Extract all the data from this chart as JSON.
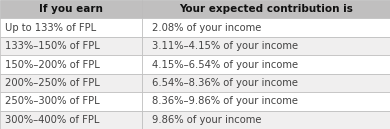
{
  "header": [
    "If you earn",
    "Your expected contribution is"
  ],
  "rows": [
    [
      "Up to 133% of FPL",
      "2.08% of your income"
    ],
    [
      "133%–150% of FPL",
      "3.11%–4.15% of your income"
    ],
    [
      "150%–200% of FPL",
      "4.15%–6.54% of your income"
    ],
    [
      "200%–250% of FPL",
      "6.54%–8.36% of your income"
    ],
    [
      "250%–300% of FPL",
      "8.36%–9.86% of your income"
    ],
    [
      "300%–400% of FPL",
      "9.86% of your income"
    ]
  ],
  "header_bg": "#c0bfbf",
  "row_bg_odd": "#ffffff",
  "row_bg_even": "#f0efef",
  "border_color": "#bbbbbb",
  "header_fontsize": 7.5,
  "row_fontsize": 7.2,
  "col_split": 0.365,
  "header_text_color": "#111111",
  "row_text_color": "#444444",
  "fig_width": 3.9,
  "fig_height": 1.29,
  "dpi": 100
}
